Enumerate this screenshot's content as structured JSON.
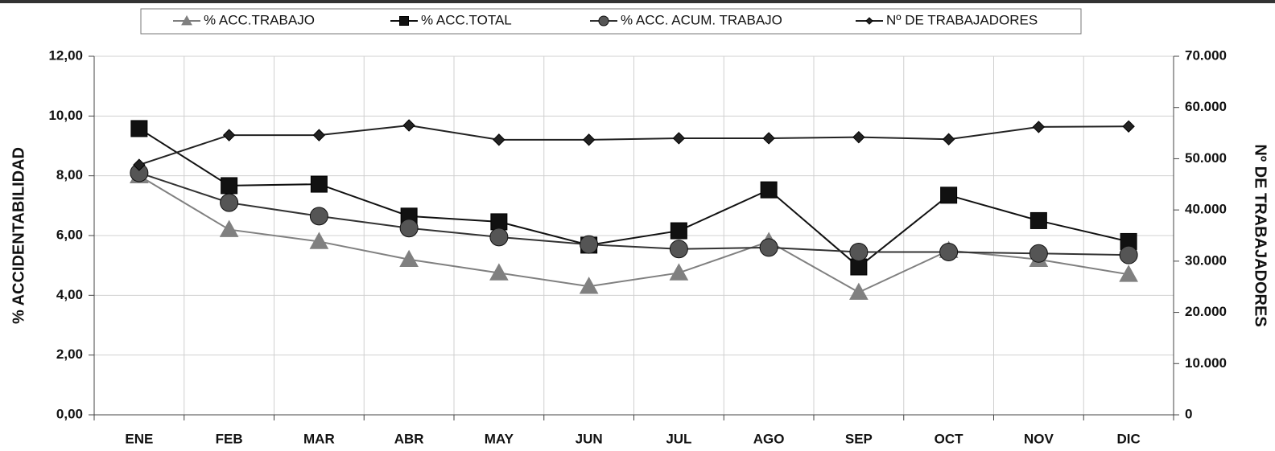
{
  "chart_data": {
    "type": "line",
    "categories": [
      "ENE",
      "FEB",
      "MAR",
      "ABR",
      "MAY",
      "JUN",
      "JUL",
      "AGO",
      "SEP",
      "OCT",
      "NOV",
      "DIC"
    ],
    "ylabel": "% ACCIDENTABILIDAD",
    "y2label": "Nº DE TRABAJADORES",
    "ylim": [
      0,
      12
    ],
    "yticks": [
      {
        "value": 0,
        "label": "0,00"
      },
      {
        "value": 2,
        "label": "2,00"
      },
      {
        "value": 4,
        "label": "4,00"
      },
      {
        "value": 6,
        "label": "6,00"
      },
      {
        "value": 8,
        "label": "8,00"
      },
      {
        "value": 10,
        "label": "10,00"
      },
      {
        "value": 12,
        "label": "12,00"
      }
    ],
    "y2lim": [
      0,
      70000
    ],
    "y2ticks": [
      0,
      {
        "value": 10000,
        "label": "10.000"
      },
      {
        "value": 20000,
        "label": "20.000"
      },
      {
        "value": 30000,
        "label": "30.000"
      },
      {
        "value": 40000,
        "label": "40.000"
      },
      {
        "value": 50000,
        "label": "50.000"
      },
      {
        "value": 60000,
        "label": "60.000"
      },
      {
        "value": 70000,
        "label": "70.000"
      }
    ],
    "grid": true,
    "legend": "top",
    "series": [
      {
        "name": "% ACC.TRABAJO",
        "color": "#808080",
        "marker": "triangle",
        "values": [
          8.0,
          6.2,
          5.8,
          5.2,
          4.75,
          4.3,
          4.75,
          5.8,
          4.1,
          5.5,
          5.2,
          4.7
        ]
      },
      {
        "name": "% ACC.TOTAL",
        "color": "#111111",
        "marker": "square",
        "values": [
          9.58,
          7.67,
          7.72,
          6.65,
          6.46,
          5.68,
          6.16,
          7.53,
          4.95,
          7.35,
          6.5,
          5.8
        ]
      },
      {
        "name": "% ACC. ACUM. TRABAJO",
        "color": "#333333",
        "marker": "circle",
        "values": [
          8.1,
          7.1,
          6.65,
          6.25,
          5.95,
          5.7,
          5.55,
          5.6,
          5.45,
          5.45,
          5.4,
          5.35
        ]
      },
      {
        "name": "Nº DE TRABAJADORES",
        "color": "#222222",
        "marker": "diamond",
        "axis": "y2",
        "values": [
          48800,
          54600,
          54600,
          56500,
          53700,
          53700,
          54000,
          54000,
          54200,
          53800,
          56200,
          56300
        ]
      }
    ]
  }
}
